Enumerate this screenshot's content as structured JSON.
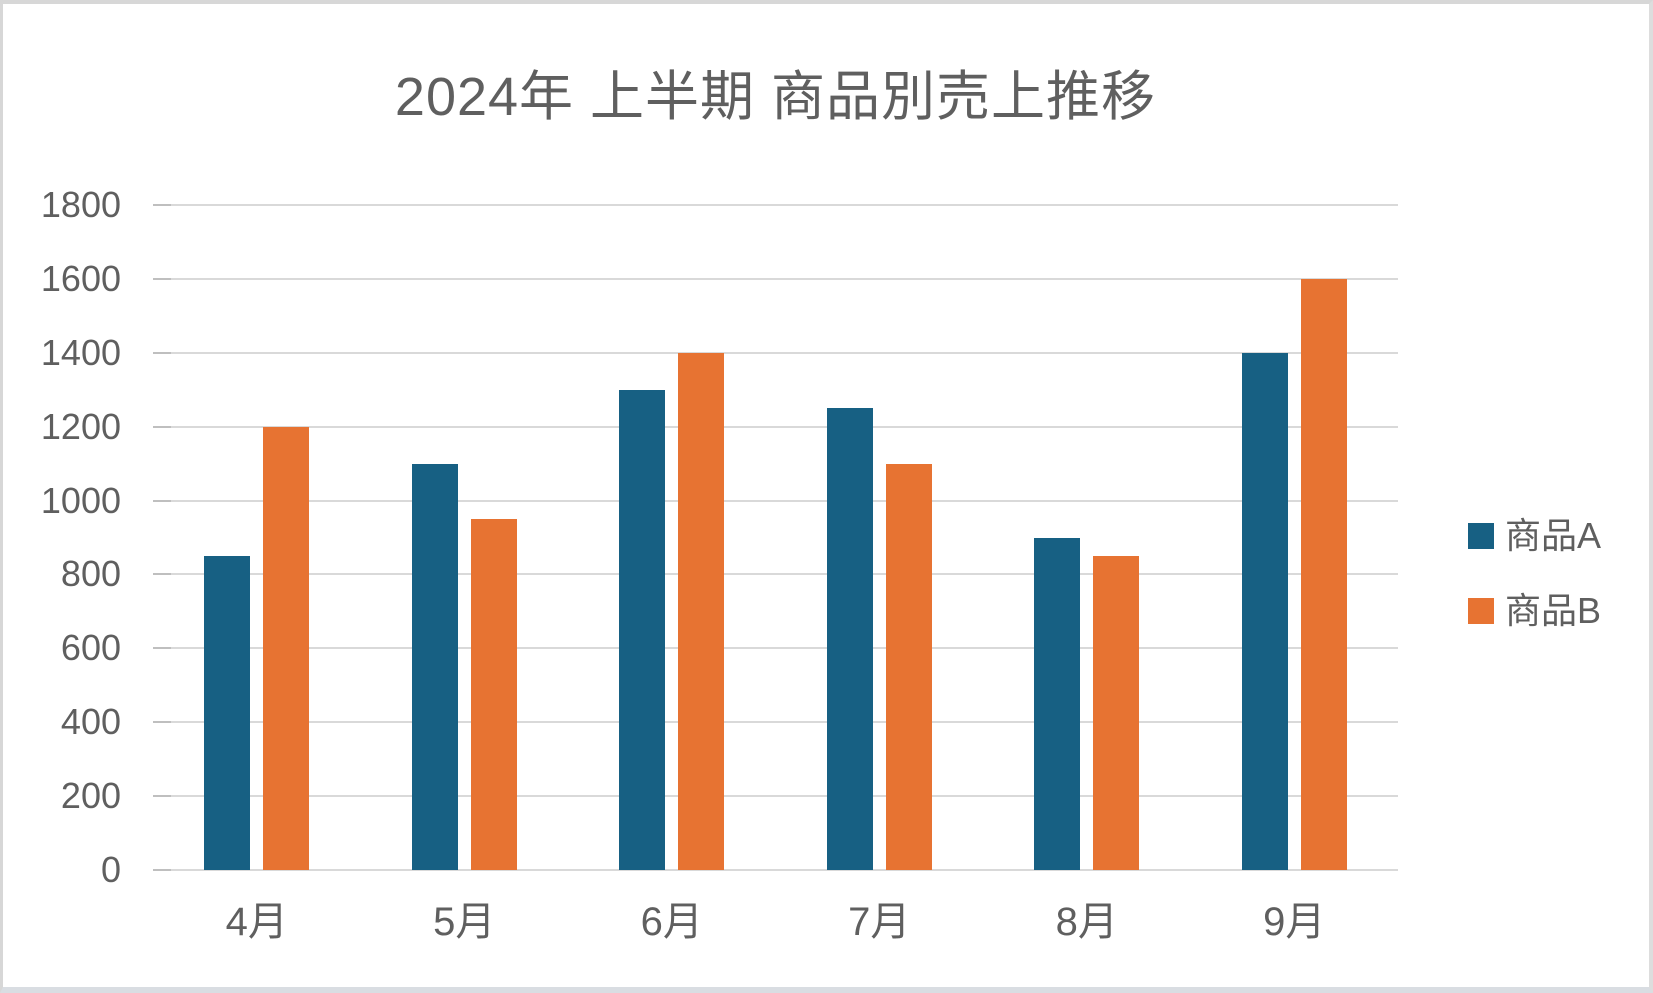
{
  "window": {
    "background": "#ffffff",
    "frame_border_color": "#d7d7d7",
    "bottom_strip_color": "#d9dde2"
  },
  "chart_data": {
    "type": "bar",
    "title": "2024年 上半期 商品別売上推移",
    "categories": [
      "4月",
      "5月",
      "6月",
      "7月",
      "8月",
      "9月"
    ],
    "series": [
      {
        "name": "商品A",
        "color": "#176083",
        "values": [
          850,
          1100,
          1300,
          1250,
          900,
          1400
        ]
      },
      {
        "name": "商品B",
        "color": "#e77332",
        "values": [
          1200,
          950,
          1400,
          1100,
          850,
          1600
        ]
      }
    ],
    "xlabel": "",
    "ylabel": "",
    "ylim": [
      0,
      1800
    ],
    "ytick_step": 200,
    "yticks": [
      0,
      200,
      400,
      600,
      800,
      1000,
      1200,
      1400,
      1600,
      1800
    ],
    "grid": "horizontal",
    "gridline_color": "#d9d9d9",
    "tick_color": "#bfbfbf",
    "text_color": "#5f5f5f",
    "legend_position": "right"
  }
}
